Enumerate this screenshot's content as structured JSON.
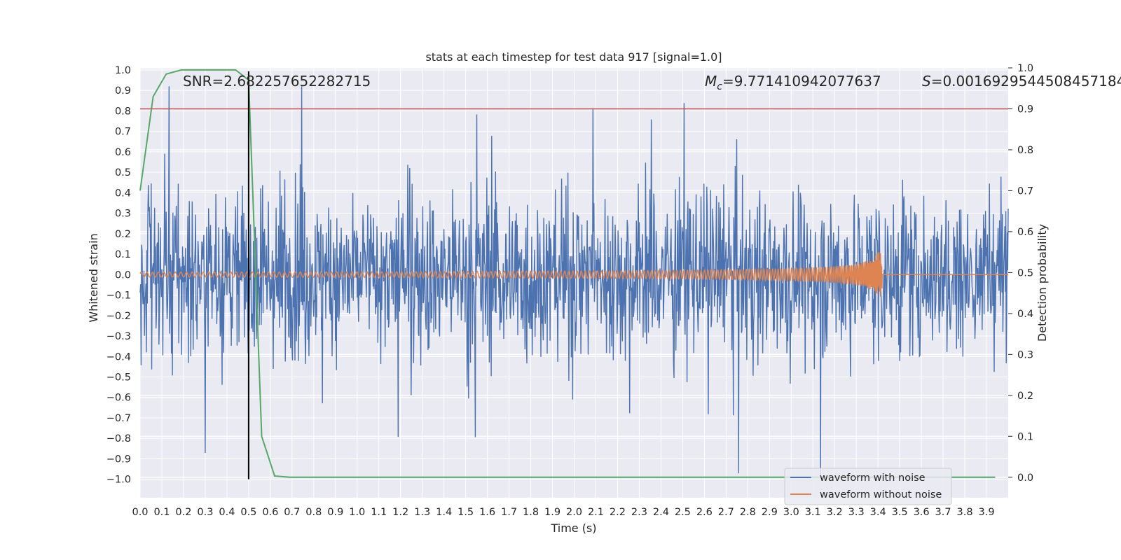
{
  "chart_data": {
    "type": "line",
    "title": "stats at each timestep for test data 917 [signal=1.0]",
    "xlabel": "Time (s)",
    "ylabel": "Whitened strain",
    "y2label": "Detection probability",
    "xlim": [
      0.0,
      4.0
    ],
    "ylim": [
      -1.09,
      1.01
    ],
    "y2lim": [
      -0.05,
      1.0
    ],
    "xticks": [
      "0.0",
      "0.1",
      "0.2",
      "0.3",
      "0.4",
      "0.5",
      "0.6",
      "0.7",
      "0.8",
      "0.9",
      "1.0",
      "1.1",
      "1.2",
      "1.3",
      "1.4",
      "1.5",
      "1.6",
      "1.7",
      "1.8",
      "1.9",
      "2.0",
      "2.1",
      "2.2",
      "2.3",
      "2.4",
      "2.5",
      "2.6",
      "2.7",
      "2.8",
      "2.9",
      "3.0",
      "3.1",
      "3.2",
      "3.3",
      "3.4",
      "3.5",
      "3.6",
      "3.7",
      "3.8",
      "3.9"
    ],
    "yticks": [
      "1.0",
      "0.9",
      "0.8",
      "0.7",
      "0.6",
      "0.5",
      "0.4",
      "0.3",
      "0.2",
      "0.1",
      "0.0",
      "−0.1",
      "−0.2",
      "−0.3",
      "−0.4",
      "−0.5",
      "−0.6",
      "−0.7",
      "−0.8",
      "−0.9",
      "−1.0"
    ],
    "y2ticks": [
      "1.0",
      "0.9",
      "0.8",
      "0.7",
      "0.6",
      "0.5",
      "0.4",
      "0.3",
      "0.2",
      "0.1",
      "0.0"
    ],
    "annotations": {
      "snr": "SNR=2.682257652282715",
      "mc_symbol": "M",
      "mc_sub": "c",
      "mc_value": "=9.771410942077637",
      "s_symbol": "S",
      "s_value": "=0.0016929544508457184"
    },
    "vline_x": 0.5,
    "threshold_y2": 0.9,
    "series": [
      {
        "name": "waveform with noise",
        "color": "#4c72b0",
        "axis": "left",
        "description": "whitened noisy strain, amplitude roughly ±0.6 with spikes to ±1.0"
      },
      {
        "name": "waveform without noise",
        "color": "#dd8452",
        "axis": "left",
        "description": "chirp signal ending near t=3.42 s"
      },
      {
        "name": "detection probability",
        "color": "#55a868",
        "axis": "right",
        "x": [
          0.0,
          0.06,
          0.12,
          0.19,
          0.25,
          0.31,
          0.37,
          0.44,
          0.5,
          0.56,
          0.62,
          0.69,
          0.75,
          1.0,
          2.0,
          3.0,
          3.5,
          3.94
        ],
        "values": [
          0.7,
          0.93,
          0.985,
          0.995,
          0.995,
          0.995,
          0.995,
          0.995,
          0.97,
          0.1,
          0.003,
          0.0,
          0.0,
          0.0,
          0.0,
          0.0,
          0.0,
          0.0
        ]
      }
    ],
    "legend": {
      "placement": "lower-right",
      "entries": [
        "waveform with noise",
        "waveform without noise"
      ]
    }
  },
  "colors": {
    "background": "#eaeaf2",
    "grid": "#ffffff",
    "noisy": "#4c72b0",
    "clean": "#dd8452",
    "probability": "#55a868",
    "threshold": "#c44e52",
    "vline": "#000000"
  }
}
